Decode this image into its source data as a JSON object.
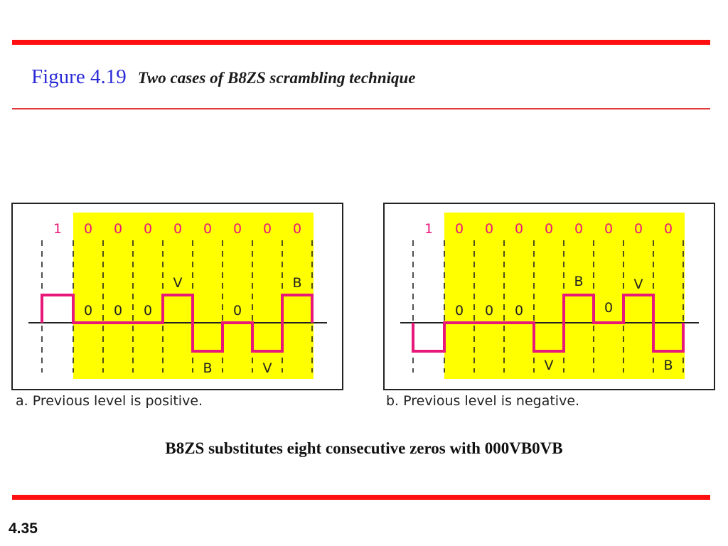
{
  "header": {
    "figure_number": "Figure 4.19",
    "figure_caption": "Two cases of B8ZS scrambling technique"
  },
  "panels": [
    {
      "id": "a",
      "caption": "a. Previous level is positive.",
      "bits": [
        "1",
        "0",
        "0",
        "0",
        "0",
        "0",
        "0",
        "0",
        "0"
      ],
      "levels": [
        1,
        0,
        0,
        0,
        1,
        -1,
        0,
        -1,
        1
      ],
      "upper_labels": [
        "V",
        "B"
      ],
      "zero_labels": [
        "0",
        "0",
        "0",
        "0"
      ],
      "lower_labels": [
        "B",
        "V"
      ]
    },
    {
      "id": "b",
      "caption": "b. Previous level is negative.",
      "bits": [
        "1",
        "0",
        "0",
        "0",
        "0",
        "0",
        "0",
        "0",
        "0"
      ],
      "levels": [
        -1,
        0,
        0,
        0,
        -1,
        1,
        0,
        1,
        -1
      ],
      "upper_labels": [
        "B",
        "V"
      ],
      "zero_labels": [
        "0",
        "0",
        "0",
        "0"
      ],
      "lower_labels": [
        "V",
        "B"
      ]
    }
  ],
  "colors": {
    "rule": "#ff0f0f",
    "highlight": "#ffff00",
    "signal": "#e8177a",
    "first_bit": "#e8177a",
    "bits": "#e8177a"
  },
  "summary": "B8ZS substitutes eight consecutive zeros with 000VB0VB",
  "footer": {
    "page_number": "4.35"
  }
}
